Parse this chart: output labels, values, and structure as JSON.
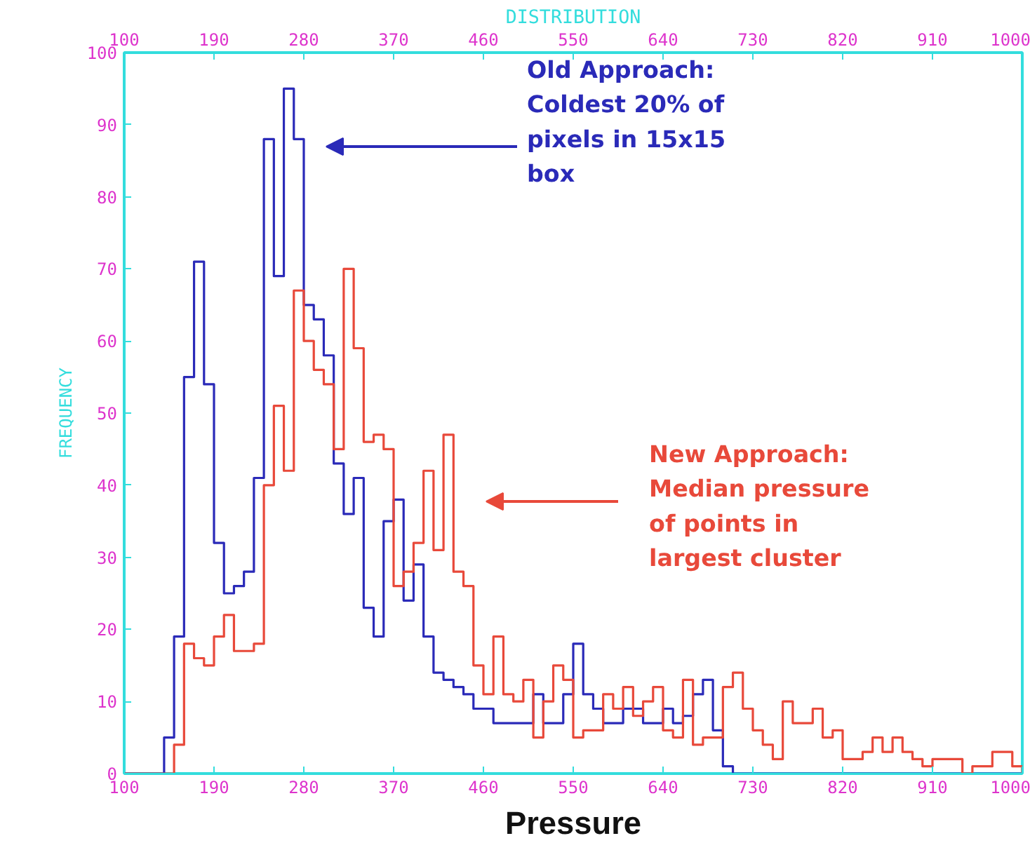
{
  "chart_data": {
    "type": "histogram",
    "xlabel": "Pressure",
    "x2label": "DISTRIBUTION",
    "ylabel": "FREQUENCY",
    "bins": [
      100,
      110,
      120,
      130,
      140,
      150,
      160,
      170,
      180,
      190,
      200,
      210,
      220,
      230,
      240,
      250,
      260,
      270,
      280,
      290,
      300,
      310,
      320,
      330,
      340,
      350,
      360,
      370,
      380,
      390,
      400,
      410,
      420,
      430,
      440,
      450,
      460,
      470,
      480,
      490,
      500,
      510,
      520,
      530,
      540,
      550,
      560,
      570,
      580,
      590,
      600,
      610,
      620,
      630,
      640,
      650,
      660,
      670,
      680,
      690,
      700,
      710,
      720,
      730,
      740,
      750,
      760,
      770,
      780,
      790,
      800,
      810,
      820,
      830,
      840,
      850,
      860,
      870,
      880,
      890,
      900,
      910,
      920,
      930,
      940,
      950,
      960,
      970,
      980,
      990,
      1000
    ],
    "series": [
      {
        "color": "#2a2ab8",
        "values": [
          0,
          0,
          0,
          0,
          5,
          19,
          55,
          71,
          54,
          32,
          25,
          26,
          28,
          41,
          88,
          69,
          95,
          88,
          65,
          63,
          58,
          43,
          36,
          41,
          23,
          19,
          35,
          38,
          24,
          29,
          19,
          14,
          13,
          12,
          11,
          9,
          9,
          7,
          7,
          7,
          7,
          11,
          7,
          7,
          11,
          18,
          11,
          9,
          7,
          7,
          9,
          9,
          7,
          7,
          9,
          7,
          8,
          11,
          13,
          6,
          1,
          0,
          0,
          0,
          0,
          0,
          0,
          0,
          0,
          0,
          0,
          0,
          0,
          0,
          0,
          0,
          0,
          0,
          0,
          0,
          0,
          0,
          0,
          0,
          0,
          0,
          0,
          0,
          0,
          0
        ]
      },
      {
        "color": "#e8493a",
        "values": [
          0,
          0,
          0,
          0,
          0,
          4,
          18,
          16,
          15,
          19,
          22,
          17,
          17,
          18,
          40,
          51,
          42,
          67,
          60,
          56,
          54,
          45,
          70,
          59,
          46,
          47,
          45,
          26,
          28,
          32,
          42,
          31,
          47,
          28,
          26,
          15,
          11,
          19,
          11,
          10,
          13,
          5,
          10,
          15,
          13,
          5,
          6,
          6,
          11,
          9,
          12,
          8,
          10,
          12,
          6,
          5,
          13,
          4,
          5,
          5,
          12,
          14,
          9,
          6,
          4,
          2,
          10,
          7,
          7,
          9,
          5,
          6,
          2,
          2,
          3,
          5,
          3,
          5,
          3,
          2,
          1,
          2,
          2,
          2,
          0,
          1,
          1,
          3,
          3,
          1
        ]
      }
    ],
    "xlim": [
      100,
      1000
    ],
    "xticks": [
      100,
      190,
      280,
      370,
      460,
      550,
      640,
      730,
      820,
      910,
      1000
    ],
    "x2lim": [
      100,
      1000
    ],
    "x2ticks": [
      100,
      190,
      280,
      370,
      460,
      550,
      640,
      730,
      820,
      910,
      1000
    ],
    "ylim": [
      0,
      100
    ],
    "yticks": [
      0,
      10,
      20,
      30,
      40,
      50,
      60,
      70,
      80,
      90,
      100
    ],
    "annotations": [
      "Old Approach:\nColdest 20% of\npixels in 15x15\nbox",
      "New Approach:\nMedian pressure\nof points in\nlargest cluster"
    ],
    "grid": false,
    "line_style": "solid"
  }
}
